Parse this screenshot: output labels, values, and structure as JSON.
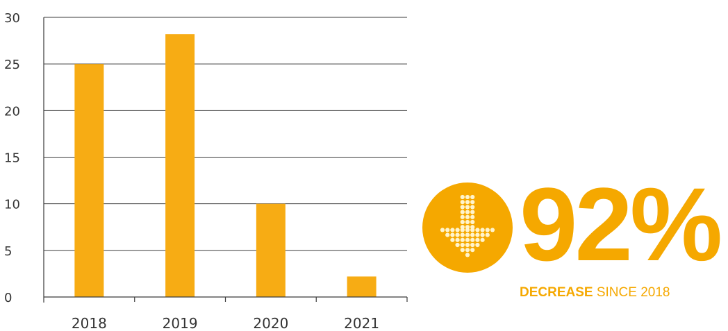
{
  "chart_data": {
    "type": "bar",
    "title": "",
    "xlabel": "",
    "ylabel": "",
    "categories": [
      "2018",
      "2019",
      "2020",
      "2021"
    ],
    "values": [
      25,
      28.2,
      10,
      2.2
    ],
    "ylim": [
      0,
      30
    ],
    "yticks": [
      0,
      5,
      10,
      15,
      20,
      25,
      30
    ],
    "grid": true,
    "legend": "none",
    "bar_color": "#f7ac14"
  },
  "stat": {
    "value": "92%",
    "caption_strong": "DECREASE",
    "caption_light": " SINCE 2018",
    "color": "#f5a800",
    "icon": "down-arrow-icon"
  }
}
